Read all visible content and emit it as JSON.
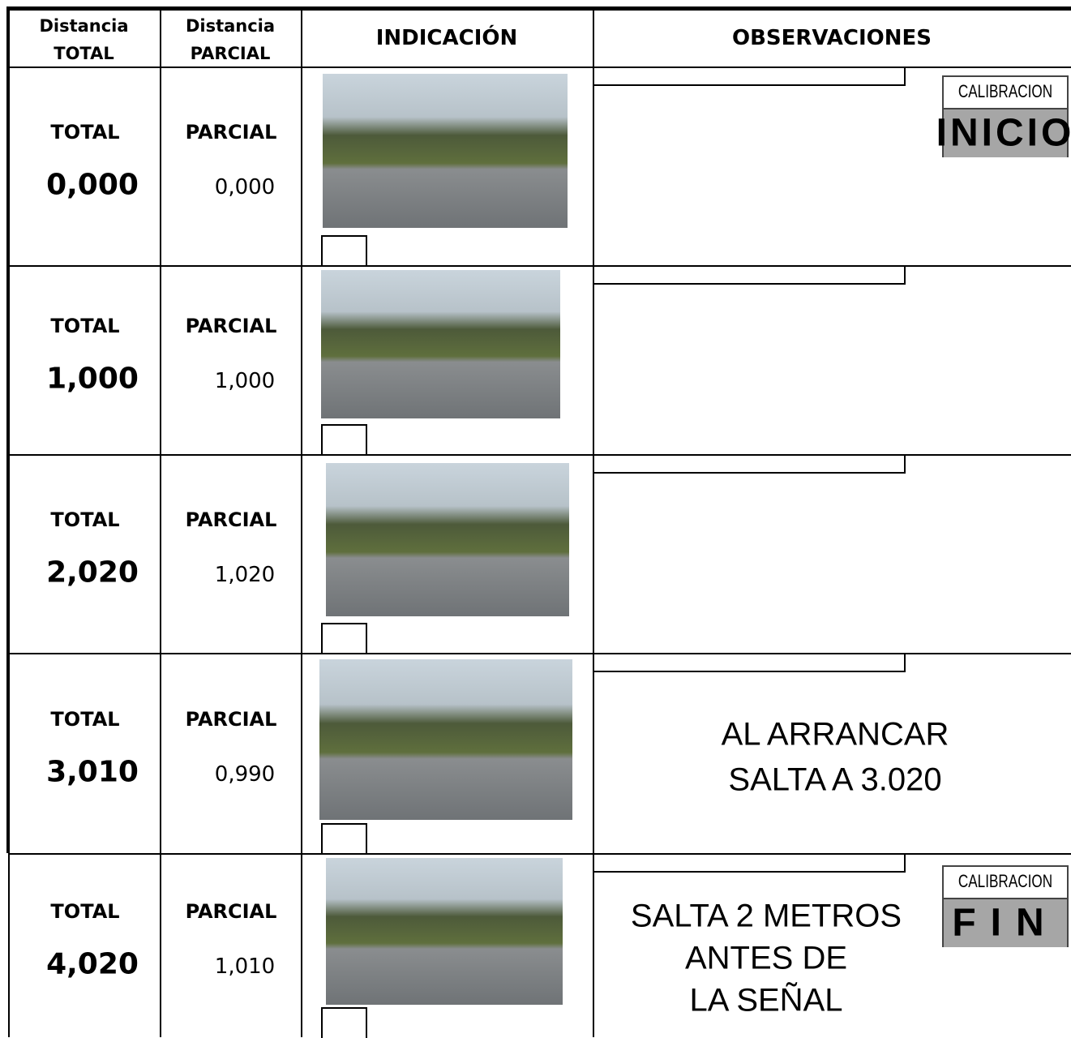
{
  "header": {
    "columns": [
      [
        "Distancia",
        "TOTAL"
      ],
      [
        "Distancia",
        "PARCIAL"
      ],
      [
        "INDICACIÓN"
      ],
      [
        "OBSERVACIONES"
      ]
    ]
  },
  "rows": [
    {
      "total_label": "TOTAL",
      "total": "0,000",
      "parcial_label": "PARCIAL",
      "parcial": "0,000",
      "observation": [],
      "calibration": {
        "label": "CALIBRACION",
        "value": "INICIO"
      }
    },
    {
      "total_label": "TOTAL",
      "total": "1,000",
      "parcial_label": "PARCIAL",
      "parcial": "1,000",
      "observation": []
    },
    {
      "total_label": "TOTAL",
      "total": "2,020",
      "parcial_label": "PARCIAL",
      "parcial": "1,020",
      "observation": []
    },
    {
      "total_label": "TOTAL",
      "total": "3,010",
      "parcial_label": "PARCIAL",
      "parcial": "0,990",
      "observation": [
        "AL ARRANCAR",
        "SALTA A 3.020"
      ]
    },
    {
      "total_label": "TOTAL",
      "total": "4,020",
      "parcial_label": "PARCIAL",
      "parcial": "1,010",
      "observation": [
        "SALTA 2 METROS",
        "ANTES DE",
        "LA SEÑAL"
      ],
      "calibration": {
        "label": "CALIBRACION",
        "value": "FIN"
      }
    }
  ]
}
